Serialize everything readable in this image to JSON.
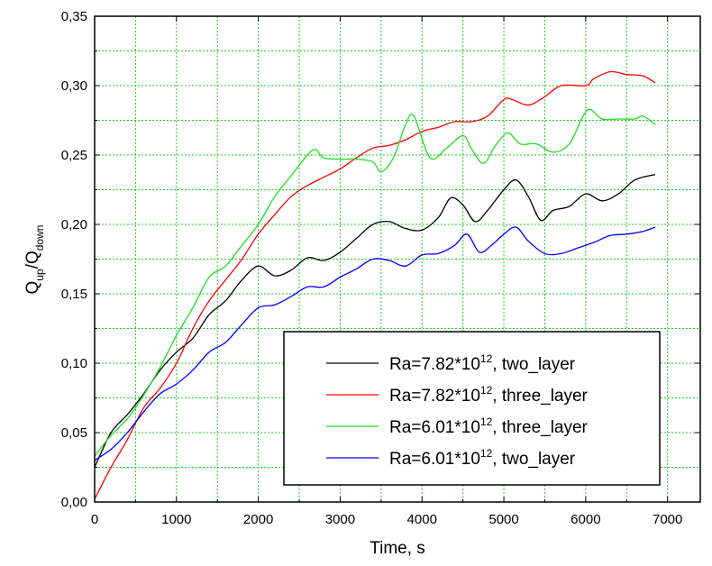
{
  "chart_data": {
    "type": "line",
    "title": "",
    "xlabel": "Time, s",
    "ylabel": {
      "base": "Q",
      "sub1": "up",
      "mid": "/Q",
      "sub2": "down"
    },
    "xlim": [
      0,
      7400
    ],
    "ylim": [
      0,
      0.35
    ],
    "xticks": [
      0,
      1000,
      2000,
      3000,
      4000,
      5000,
      6000,
      7000
    ],
    "xtick_labels": [
      "0",
      "1000",
      "2000",
      "3000",
      "4000",
      "5000",
      "6000",
      "7000"
    ],
    "yticks": [
      0,
      0.05,
      0.1,
      0.15,
      0.2,
      0.25,
      0.3,
      0.35
    ],
    "ytick_labels": [
      "0,00",
      "0,05",
      "0,10",
      "0,15",
      "0,20",
      "0,25",
      "0,30",
      "0,35"
    ],
    "grid": true,
    "grid_color": "#22cc22",
    "legend_position": "bottom-right",
    "series": [
      {
        "name": "Ra=7.82*10^12, two_layer",
        "legend": {
          "pre": "Ra=7.82*10",
          "exp": "12",
          "post": ", two_layer"
        },
        "color": "#000000",
        "x": [
          0,
          200,
          400,
          600,
          800,
          1000,
          1200,
          1400,
          1600,
          1800,
          2000,
          2200,
          2400,
          2600,
          2800,
          3000,
          3200,
          3400,
          3600,
          3800,
          4000,
          4200,
          4350,
          4500,
          4650,
          4800,
          5000,
          5150,
          5300,
          5450,
          5600,
          5800,
          6000,
          6200,
          6400,
          6600,
          6850
        ],
        "y": [
          0.025,
          0.05,
          0.063,
          0.078,
          0.095,
          0.108,
          0.118,
          0.135,
          0.145,
          0.16,
          0.17,
          0.163,
          0.167,
          0.176,
          0.174,
          0.18,
          0.19,
          0.2,
          0.202,
          0.197,
          0.196,
          0.205,
          0.219,
          0.214,
          0.202,
          0.21,
          0.225,
          0.232,
          0.22,
          0.203,
          0.21,
          0.213,
          0.222,
          0.217,
          0.222,
          0.232,
          0.236
        ]
      },
      {
        "name": "Ra=7.82*10^12, three_layer",
        "legend": {
          "pre": "Ra=7.82*10",
          "exp": "12",
          "post": ", three_layer"
        },
        "color": "#ff0000",
        "x": [
          0,
          200,
          400,
          600,
          800,
          1000,
          1200,
          1400,
          1600,
          1800,
          2000,
          2200,
          2400,
          2600,
          2800,
          3000,
          3200,
          3400,
          3600,
          3800,
          4000,
          4200,
          4400,
          4600,
          4800,
          5000,
          5100,
          5300,
          5500,
          5700,
          6000,
          6100,
          6300,
          6500,
          6700,
          6850
        ],
        "y": [
          0.002,
          0.025,
          0.045,
          0.068,
          0.082,
          0.1,
          0.125,
          0.145,
          0.16,
          0.175,
          0.193,
          0.207,
          0.22,
          0.228,
          0.234,
          0.24,
          0.248,
          0.255,
          0.257,
          0.261,
          0.267,
          0.27,
          0.274,
          0.274,
          0.278,
          0.29,
          0.29,
          0.286,
          0.292,
          0.3,
          0.3,
          0.305,
          0.31,
          0.308,
          0.307,
          0.302
        ]
      },
      {
        "name": "Ra=6.01*10^12, three_layer",
        "legend": {
          "pre": "Ra=6.01*10",
          "exp": "12",
          "post": ", three_layer"
        },
        "color": "#22dd22",
        "x": [
          0,
          200,
          400,
          600,
          800,
          1000,
          1200,
          1400,
          1600,
          1800,
          2000,
          2200,
          2400,
          2600,
          2700,
          2800,
          3000,
          3200,
          3400,
          3500,
          3650,
          3800,
          3900,
          4100,
          4300,
          4500,
          4600,
          4750,
          4900,
          5050,
          5200,
          5400,
          5600,
          5800,
          5950,
          6050,
          6200,
          6400,
          6600,
          6700,
          6850
        ],
        "y": [
          0.033,
          0.048,
          0.06,
          0.077,
          0.097,
          0.12,
          0.14,
          0.162,
          0.17,
          0.185,
          0.2,
          0.22,
          0.235,
          0.25,
          0.254,
          0.248,
          0.247,
          0.247,
          0.245,
          0.238,
          0.248,
          0.272,
          0.278,
          0.248,
          0.255,
          0.264,
          0.255,
          0.244,
          0.257,
          0.266,
          0.258,
          0.258,
          0.252,
          0.258,
          0.276,
          0.283,
          0.276,
          0.276,
          0.276,
          0.278,
          0.272
        ]
      },
      {
        "name": "Ra=6.01*10^12, two_layer",
        "legend": {
          "pre": "Ra=6.01*10",
          "exp": "12",
          "post": ", two_layer"
        },
        "color": "#0000ff",
        "x": [
          0,
          200,
          400,
          600,
          800,
          1000,
          1200,
          1400,
          1600,
          1800,
          2000,
          2200,
          2400,
          2600,
          2800,
          3000,
          3200,
          3400,
          3600,
          3800,
          4000,
          4200,
          4400,
          4550,
          4700,
          4850,
          5000,
          5150,
          5300,
          5500,
          5700,
          5900,
          6100,
          6300,
          6500,
          6700,
          6850
        ],
        "y": [
          0.03,
          0.038,
          0.05,
          0.065,
          0.078,
          0.085,
          0.095,
          0.108,
          0.115,
          0.128,
          0.14,
          0.142,
          0.148,
          0.155,
          0.155,
          0.162,
          0.168,
          0.175,
          0.174,
          0.17,
          0.178,
          0.179,
          0.185,
          0.193,
          0.18,
          0.185,
          0.193,
          0.198,
          0.188,
          0.179,
          0.179,
          0.183,
          0.187,
          0.192,
          0.193,
          0.195,
          0.198
        ]
      }
    ]
  }
}
